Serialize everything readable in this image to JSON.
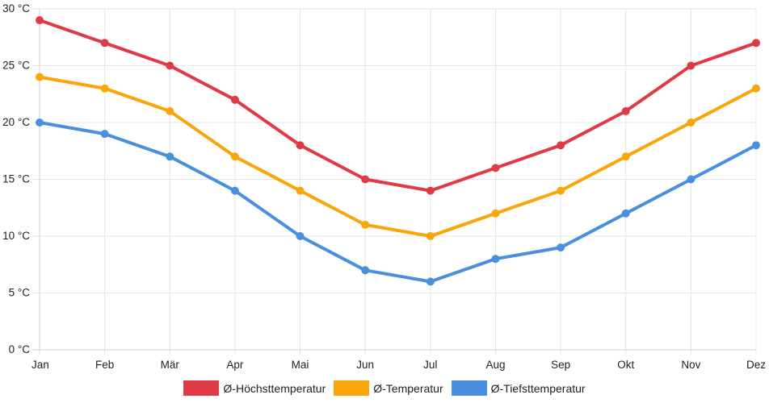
{
  "chart_data": {
    "type": "line",
    "categories": [
      "Jan",
      "Feb",
      "Mär",
      "Apr",
      "Mai",
      "Jun",
      "Jul",
      "Aug",
      "Sep",
      "Okt",
      "Nov",
      "Dez"
    ],
    "series": [
      {
        "name": "Ø-Höchsttemperatur",
        "color": "#e03a46",
        "values": [
          29,
          27,
          25,
          22,
          18,
          15,
          14,
          16,
          18,
          21,
          25,
          27
        ]
      },
      {
        "name": "Ø-Temperatur",
        "color": "#f9a60b",
        "values": [
          24,
          23,
          21,
          17,
          14,
          11,
          10,
          12,
          14,
          17,
          20,
          23
        ]
      },
      {
        "name": "Ø-Tiefsttemperatur",
        "color": "#4a8fde",
        "values": [
          20,
          19,
          17,
          14,
          10,
          7,
          6,
          8,
          9,
          12,
          15,
          18
        ]
      }
    ],
    "yticks": [
      "0 °C",
      "5 °C",
      "10 °C",
      "15 °C",
      "20 °C",
      "25 °C",
      "30 °C"
    ],
    "ylim": [
      0,
      30
    ],
    "ytick_step": 5,
    "grid": true,
    "legend": "bottom-center",
    "title": "",
    "xlabel": "",
    "ylabel": ""
  }
}
